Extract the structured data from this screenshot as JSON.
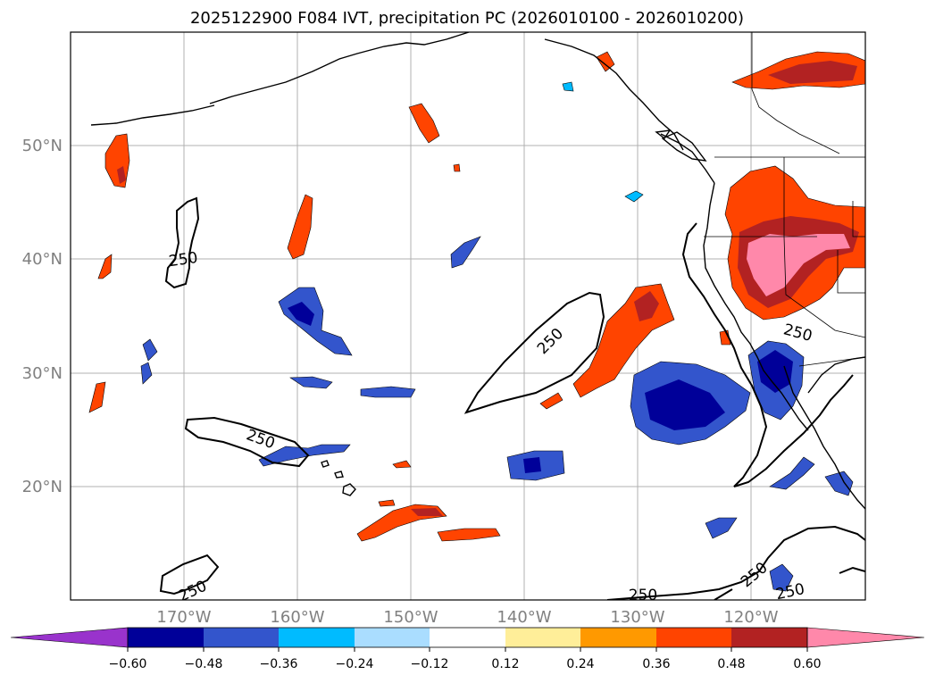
{
  "title": "2025122900 F084 IVT, precipitation PC (2026010100 - 2026010200)",
  "lat_labels": [
    "50°N",
    "40°N",
    "30°N",
    "20°N"
  ],
  "lon_labels": [
    "170°W",
    "160°W",
    "150°W",
    "140°W",
    "130°W",
    "120°W"
  ],
  "contour_label": "250",
  "colorbar": {
    "ticks": [
      "−0.60",
      "−0.48",
      "−0.36",
      "−0.24",
      "−0.12",
      "0.12",
      "0.24",
      "0.36",
      "0.48",
      "0.60"
    ],
    "colors": [
      "#9933cc",
      "#000099",
      "#3355cc",
      "#00bbff",
      "#aaddff",
      "#ffffff",
      "#ffee99",
      "#ff9900",
      "#ff4400",
      "#b22222",
      "#ff88aa"
    ]
  }
}
